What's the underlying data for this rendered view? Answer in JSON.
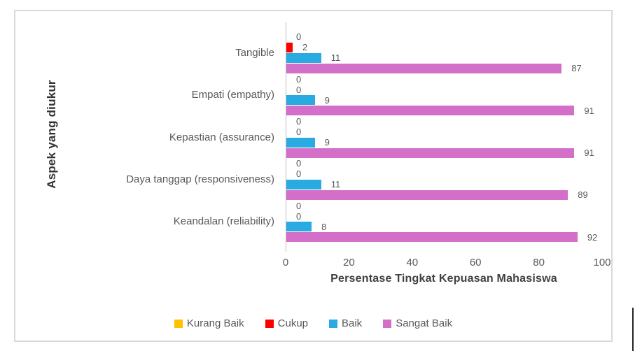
{
  "chart_data": {
    "type": "bar",
    "orientation": "horizontal",
    "title": "",
    "categories": [
      "Tangible",
      "Empati (empathy)",
      "Kepastian (assurance)",
      "Daya tanggap (responsiveness)",
      "Keandalan (reliability)"
    ],
    "series": [
      {
        "name": "Kurang Baik",
        "color": "#FFC000",
        "values": [
          0,
          0,
          0,
          0,
          0
        ]
      },
      {
        "name": "Cukup",
        "color": "#FF0000",
        "values": [
          2,
          0,
          0,
          0,
          0
        ]
      },
      {
        "name": "Baik",
        "color": "#29ABE2",
        "values": [
          11,
          9,
          9,
          11,
          8
        ]
      },
      {
        "name": "Sangat Baik",
        "color": "#D36FC8",
        "values": [
          87,
          91,
          91,
          89,
          92
        ]
      }
    ],
    "xlabel": "Persentase Tingkat Kepuasan Mahasiswa",
    "ylabel": "Aspek yang diukur",
    "xlim": [
      0,
      100
    ],
    "x_ticks": [
      0,
      20,
      40,
      60,
      80,
      100
    ],
    "grid": false,
    "data_labels": true,
    "legend_position": "bottom"
  },
  "style": {
    "frame_border_color": "#D9D9D9",
    "axis_line_color": "#BFBFBF",
    "label_color": "#595959",
    "axis_title_color": "#404040"
  }
}
